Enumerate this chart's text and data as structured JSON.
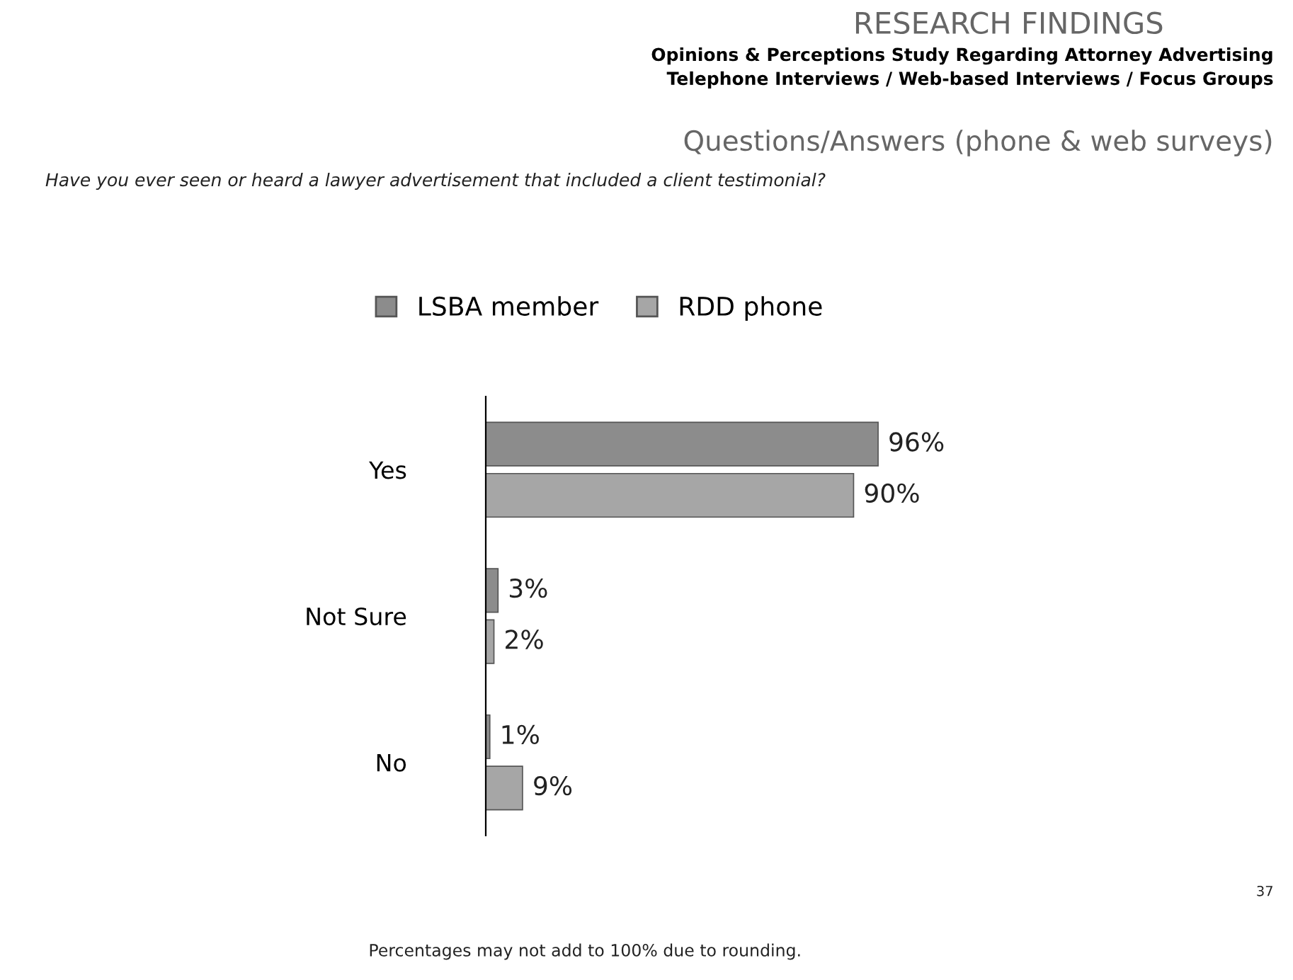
{
  "chart_data": {
    "type": "bar",
    "orientation": "horizontal",
    "title": "RESEARCH FINDINGS",
    "subtitle": "Opinions & Perceptions Study Regarding Attorney Advertising\nTelephone Interviews / Web-based Interviews / Focus Groups",
    "annotations": [
      "Questions/Answers (phone & web surveys)",
      "Have you ever seen or heard a lawyer advertisement that included a client testimonial?",
      "Percentages may not add to 100% due to rounding.",
      "37"
    ],
    "categories": [
      "Yes",
      "Not Sure",
      "No"
    ],
    "series": [
      {
        "name": "LSBA member",
        "color": "#8c8c8c",
        "values": [
          96,
          3,
          1
        ],
        "value_labels": [
          "96%",
          "3%",
          "1%"
        ]
      },
      {
        "name": "RDD phone",
        "color": "#a6a6a6",
        "values": [
          90,
          2,
          9
        ],
        "value_labels": [
          "90%",
          "2%",
          "9%"
        ]
      }
    ],
    "legend": "top",
    "grid": false,
    "tick_labels": "y"
  }
}
